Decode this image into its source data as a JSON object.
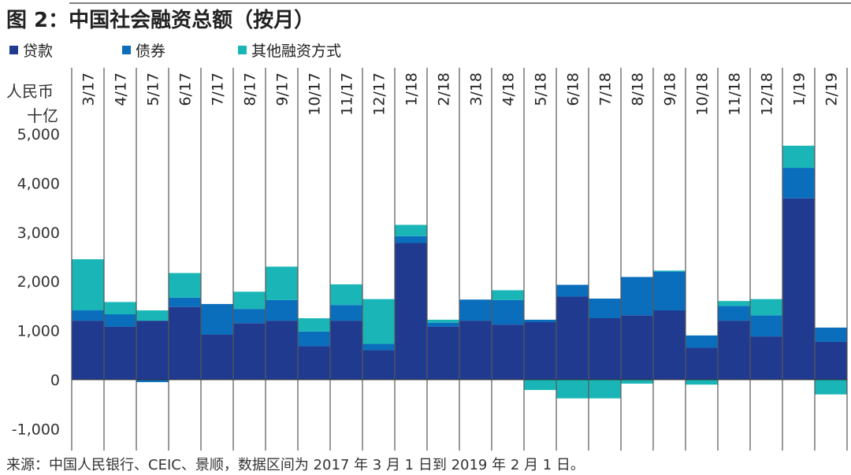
{
  "chart_data": {
    "type": "bar",
    "stacked": true,
    "title": "图 2：中国社会融资总额（按月）",
    "ylabel": "人民币\n十亿",
    "ylim": [
      -1000,
      5000
    ],
    "yticks": [
      5000,
      4000,
      3000,
      2000,
      1000,
      0,
      -1000
    ],
    "ytick_labels": [
      "5,000",
      "4,000",
      "3,000",
      "2,000",
      "1,000",
      "0",
      "-1,000"
    ],
    "grid": "vertical separators between categories",
    "legend_position": "top-left",
    "categories": [
      "3/17",
      "4/17",
      "5/17",
      "6/17",
      "7/17",
      "8/17",
      "9/17",
      "10/17",
      "11/17",
      "12/17",
      "1/18",
      "2/18",
      "3/18",
      "4/18",
      "5/18",
      "6/18",
      "7/18",
      "8/18",
      "9/18",
      "10/18",
      "11/18",
      "12/18",
      "1/19",
      "2/19"
    ],
    "series": [
      {
        "name": "贷款",
        "color": "#1f3a8f",
        "values": [
          1200,
          1080,
          1200,
          1480,
          920,
          1150,
          1200,
          680,
          1200,
          600,
          2780,
          1080,
          1200,
          1120,
          1170,
          1690,
          1250,
          1310,
          1410,
          650,
          1200,
          880,
          3690,
          770
        ]
      },
      {
        "name": "债券",
        "color": "#0a6ebd",
        "values": [
          210,
          250,
          -50,
          190,
          620,
          290,
          420,
          300,
          320,
          130,
          140,
          80,
          430,
          500,
          50,
          240,
          400,
          780,
          790,
          250,
          300,
          430,
          620,
          290
        ]
      },
      {
        "name": "其他融资方式",
        "color": "#1ab6b7",
        "values": [
          1040,
          250,
          210,
          500,
          0,
          350,
          680,
          270,
          420,
          910,
          230,
          60,
          0,
          200,
          -210,
          -380,
          -380,
          -80,
          20,
          -100,
          100,
          330,
          450,
          -300
        ]
      }
    ],
    "source": "来源：中国人民银行、CEIC、景顺，数据区间为 2017 年 3 月 1 日到 2019 年 2 月 1 日。"
  }
}
